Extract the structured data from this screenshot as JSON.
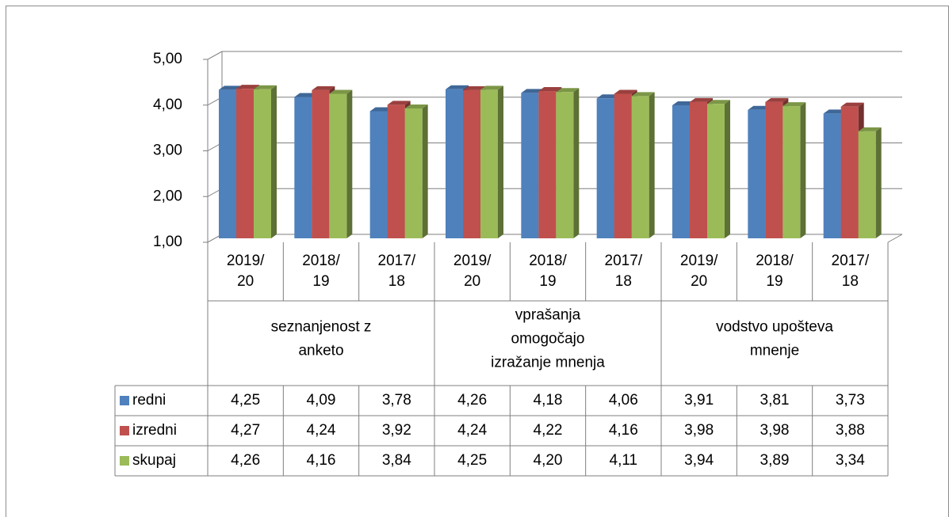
{
  "chart_data": {
    "type": "bar3d",
    "categories": [
      "2019/20",
      "2018/19",
      "2017/18",
      "2019/20",
      "2018/19",
      "2017/18",
      "2019/20",
      "2018/19",
      "2017/18"
    ],
    "groups": [
      "seznanjenost z anketo",
      "vprašanja omogočajo izražanje mnenja",
      "vodstvo upošteva mnenje"
    ],
    "series": [
      {
        "name": "redni",
        "color": "#4f81bd",
        "values": [
          4.25,
          4.09,
          3.78,
          4.26,
          4.18,
          4.06,
          3.91,
          3.81,
          3.73
        ],
        "value_labels": [
          "4,25",
          "4,09",
          "3,78",
          "4,26",
          "4,18",
          "4,06",
          "3,91",
          "3,81",
          "3,73"
        ]
      },
      {
        "name": "izredni",
        "color": "#c0504d",
        "values": [
          4.27,
          4.24,
          3.92,
          4.24,
          4.22,
          4.16,
          3.98,
          3.98,
          3.88
        ],
        "value_labels": [
          "4,27",
          "4,24",
          "3,92",
          "4,24",
          "4,22",
          "4,16",
          "3,98",
          "3,98",
          "3,88"
        ]
      },
      {
        "name": "skupaj",
        "color": "#9bbb59",
        "values": [
          4.26,
          4.16,
          3.84,
          4.25,
          4.2,
          4.11,
          3.94,
          3.89,
          3.34
        ],
        "value_labels": [
          "4,26",
          "4,16",
          "3,84",
          "4,25",
          "4,20",
          "4,11",
          "3,94",
          "3,89",
          "3,34"
        ]
      }
    ],
    "ylim": [
      1,
      5
    ],
    "yticks": [
      {
        "value": 1,
        "label": "1,00"
      },
      {
        "value": 2,
        "label": "2,00"
      },
      {
        "value": 3,
        "label": "3,00"
      },
      {
        "value": 4,
        "label": "4,00"
      },
      {
        "value": 5,
        "label": "5,00"
      }
    ],
    "grid": true,
    "legend": "table"
  }
}
